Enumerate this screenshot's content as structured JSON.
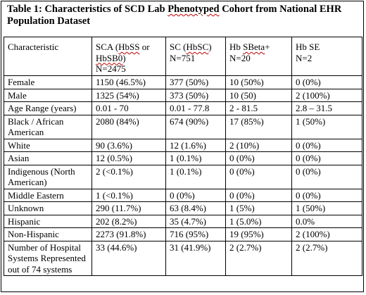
{
  "caption": {
    "prefix": "Table 1: Characteristics of SCD Lab Phenotyped Cohort from National EHR",
    "line2": "Population Dataset",
    "prefix_before_squiggle": "Table 1: Characteristics of SCD Lab ",
    "squiggle_word": "Phenotyped",
    "suffix_after_squiggle": " Cohort from National EHR"
  },
  "header": {
    "characteristic": "Characteristic",
    "sca": {
      "line1": "SCA (",
      "hbss": "HbSS",
      "line1b": " or",
      "hbsb0": "HbSB0",
      "line2b": ")",
      "n": "N=2475"
    },
    "sc": {
      "pre": "SC (",
      "hbsc": "HbSC",
      "post": ")",
      "n": "N=751"
    },
    "sbeta": {
      "pre": "Hb ",
      "word": "SBeta",
      "post": "+",
      "n": "N=20"
    },
    "se": {
      "pre": "Hb SE",
      "n": "N=2"
    }
  },
  "rows": [
    {
      "label": "Female",
      "sca": "1150 (46.5%)",
      "sc": "377 (50%)",
      "sbeta": "10 (50%)",
      "se": "0 (0%)"
    },
    {
      "label": "Male",
      "sca": "1325 (54%)",
      "sc": "373 (50%)",
      "sbeta": "10 (50)",
      "se": "2 (100%)"
    },
    {
      "label": "Age Range (years)",
      "sca": "0.01 - 70",
      "sc": "0.01 - 77.8",
      "sbeta": "2 - 81.5",
      "se": "2.8 – 31.5"
    },
    {
      "label": "Black / African American",
      "sca": "2080 (84%)",
      "sc": "674 (90%)",
      "sbeta": "17 (85%)",
      "se": "1 (50%)"
    },
    {
      "label": "White",
      "sca": "90 (3.6%)",
      "sc": "12 (1.6%)",
      "sbeta": "2 (10%)",
      "se": "0 (0%)"
    },
    {
      "label": "Asian",
      "sca": "12 (0.5%)",
      "sc": "1 (0.1%)",
      "sbeta": "0 (0%)",
      "se": "0 (0%)"
    },
    {
      "label": "Indigenous (North American)",
      "sca": "2 (<0.1%)",
      "sc": "1 (0.1%)",
      "sbeta": "0 (0%)",
      "se": "0 (0%)"
    },
    {
      "label": "Middle Eastern",
      "sca": "1 (<0.1%)",
      "sc": "0 (0%)",
      "sbeta": "0 (0%)",
      "se": "0 (0%)"
    },
    {
      "label": "Unknown",
      "sca": "290 (11.7%)",
      "sc": "63 (8.4%)",
      "sbeta": "1 (5%)",
      "se": "1 (50%)"
    },
    {
      "label": "Hispanic",
      "sca": "202 (8.2%)",
      "sc": "35 (4.7%)",
      "sbeta": "1 (5.0%)",
      "se": "0.0%"
    },
    {
      "label": "Non-Hispanic",
      "sca": "2273 (91.8%)",
      "sc": "716 (95%)",
      "sbeta": "19 (95%)",
      "se": "2 (100%)"
    },
    {
      "label": "Number of Hospital Systems Represented out of 74 systems",
      "sca": "33 (44.6%)",
      "sc": "31 (41.9%)",
      "sbeta": "2 (2.7%)",
      "se": "2 (2.7%)"
    }
  ]
}
